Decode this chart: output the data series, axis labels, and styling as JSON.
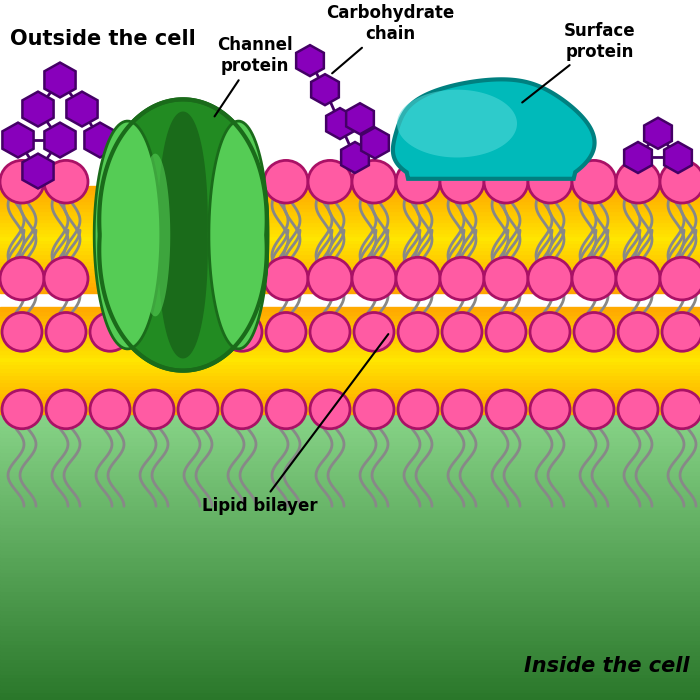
{
  "bg_color": "#ffffff",
  "outside_label": "Outside the cell",
  "inside_label": "Inside the cell",
  "lipid_bilayer_label": "Lipid bilayer",
  "channel_protein_label": "Channel\nprotein",
  "carbohydrate_label": "Carbohydrate\nchain",
  "surface_protein_label": "Surface\nprotein",
  "pink_color": "#FF5BA3",
  "pink_outline": "#aa1166",
  "orange_color": "#FFA500",
  "orange_light": "#FFE0A0",
  "green_dark": "#1a6b1a",
  "green_mid": "#228B22",
  "green_light": "#55cc55",
  "teal_outer": "#008080",
  "teal_mid": "#00BABA",
  "teal_light": "#55DADA",
  "purple_hex": "#8800bb",
  "purple_outline": "#440066",
  "tail_color": "#888888",
  "bottom_green_dark": "#55bb55",
  "bottom_green_light": "#ccffcc",
  "label_fontsize": 12,
  "title_fontsize": 15
}
